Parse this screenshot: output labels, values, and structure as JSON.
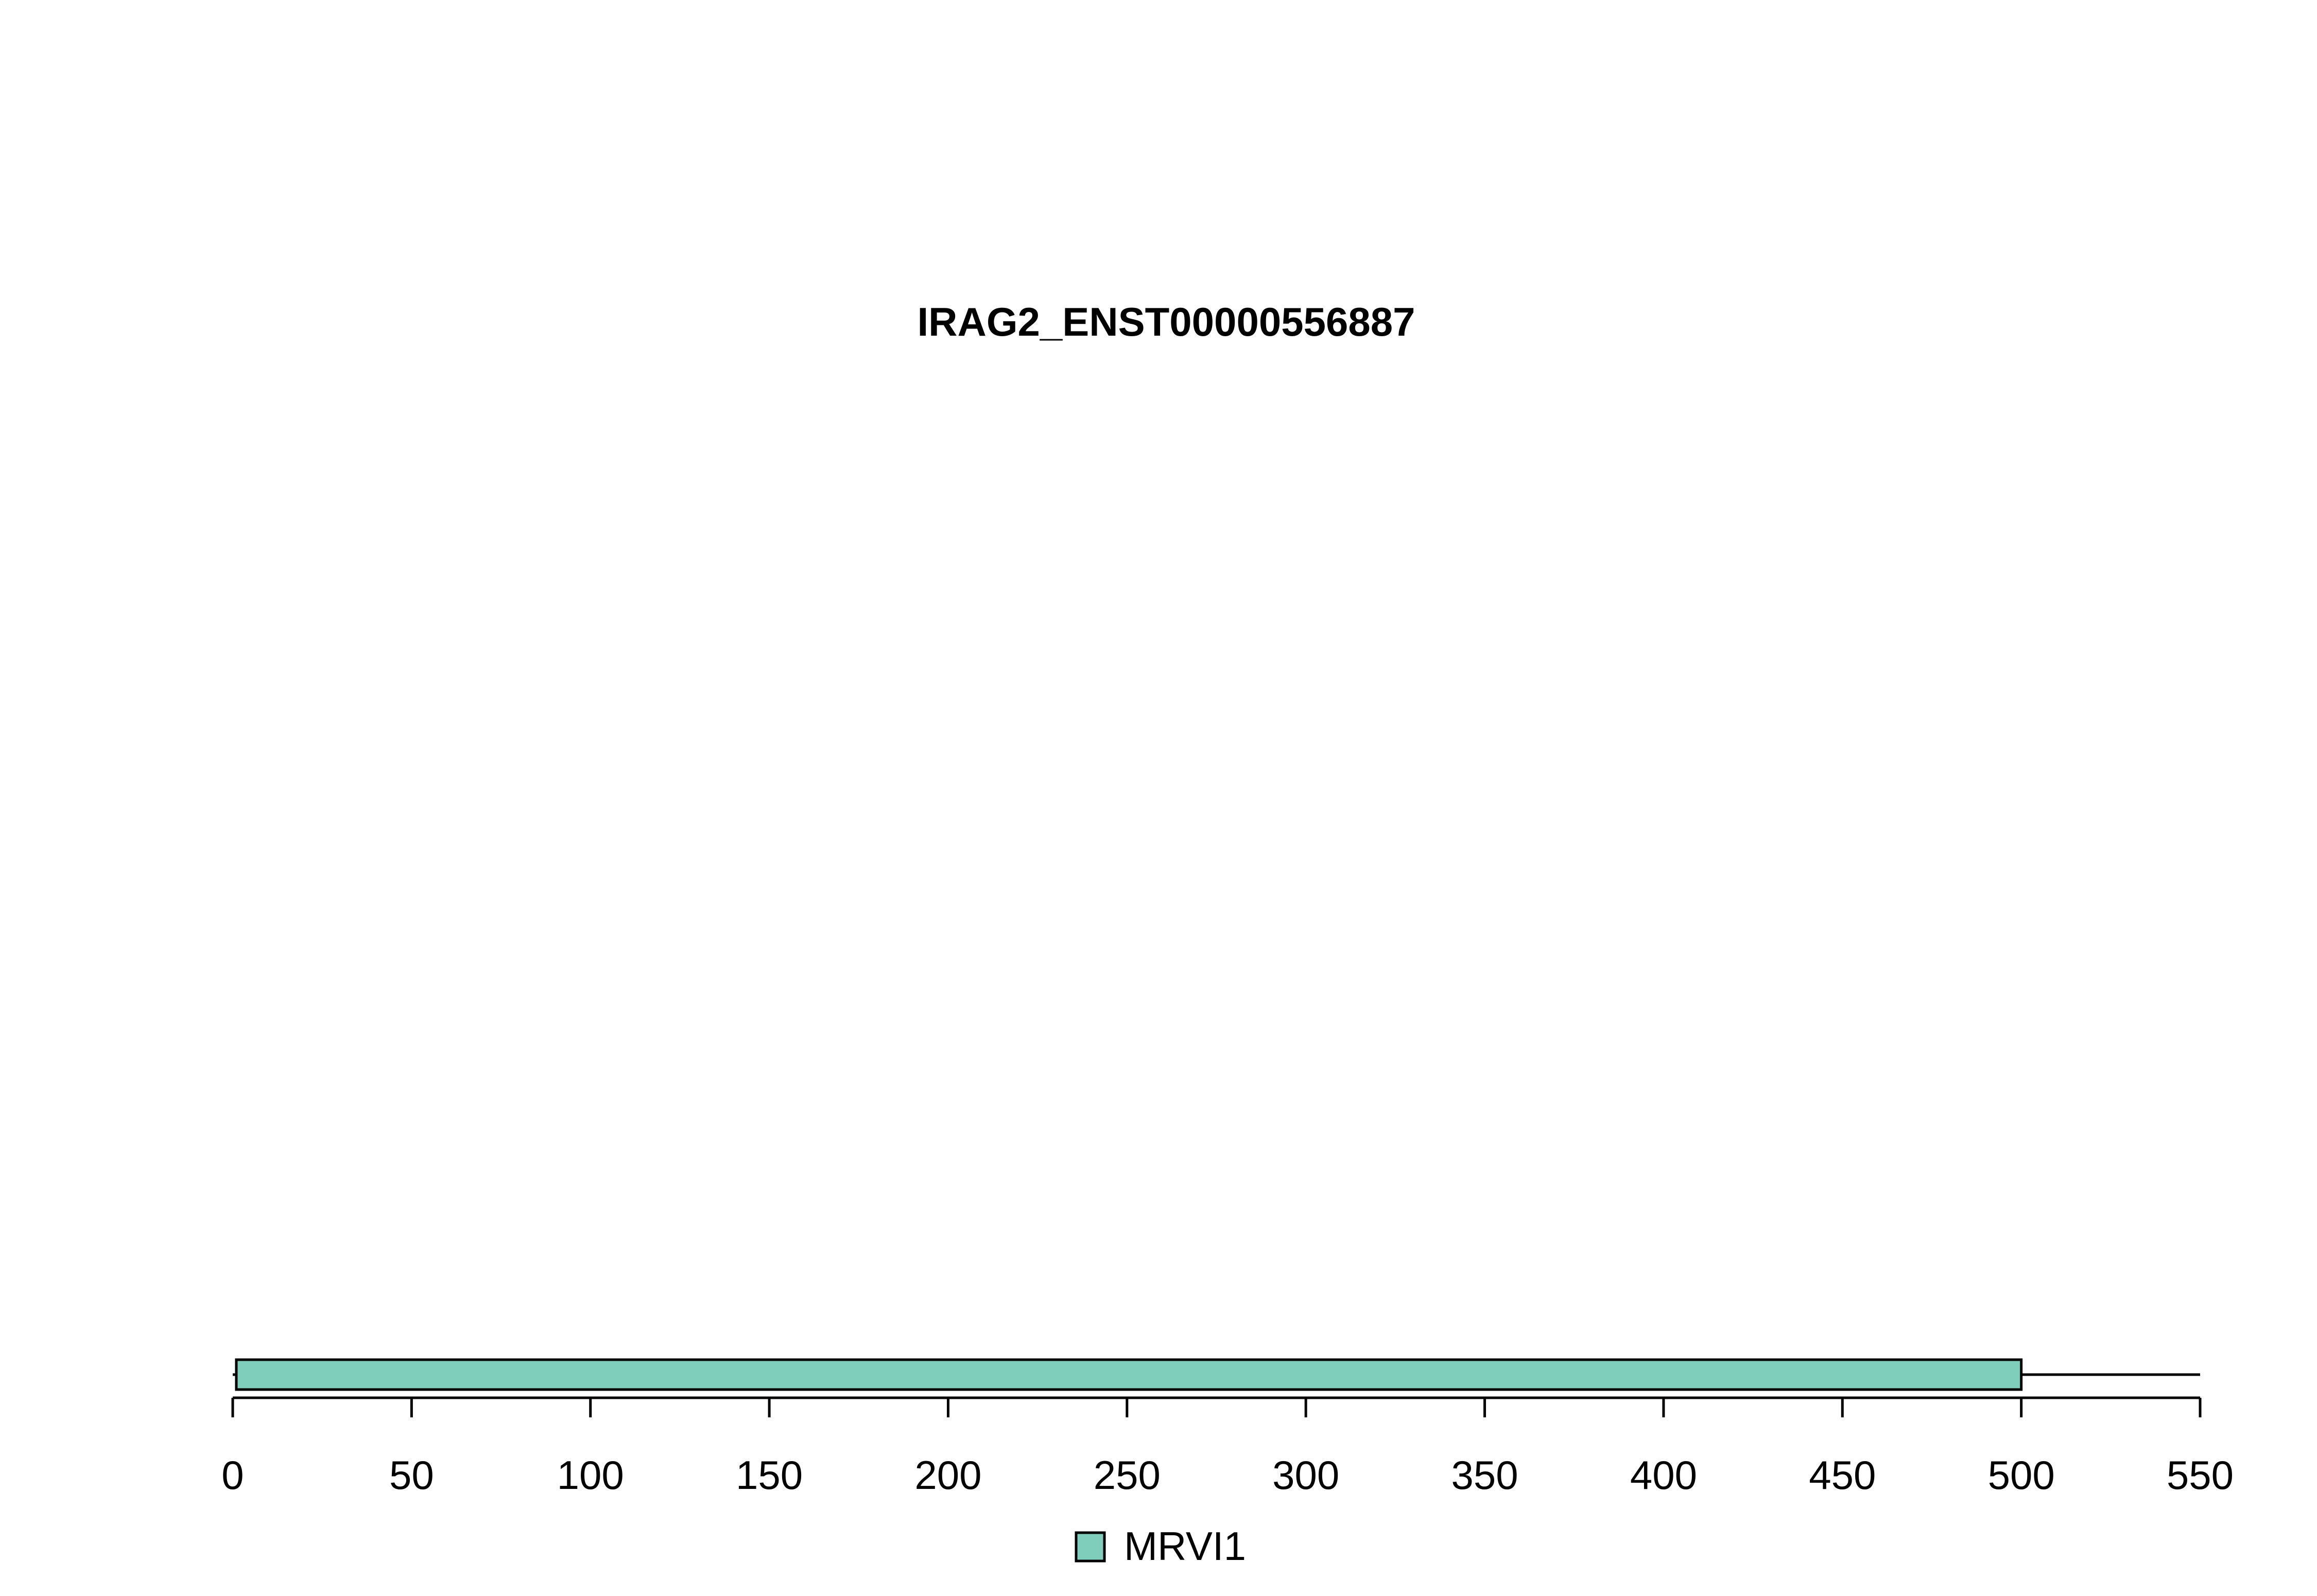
{
  "chart_data": {
    "type": "bar",
    "orientation": "horizontal",
    "title": "IRAG2_ENST00000556887",
    "xlabel": "",
    "ylabel": "",
    "xlim": [
      0,
      550
    ],
    "x_ticks": [
      0,
      50,
      100,
      150,
      200,
      250,
      300,
      350,
      400,
      450,
      500,
      550
    ],
    "backbone": {
      "start": 0,
      "end": 550,
      "color": "#000000"
    },
    "domains": [
      {
        "name": "MRVI1",
        "start": 1,
        "end": 500,
        "color": "#7fcdbb"
      }
    ],
    "legend": {
      "position": "bottom-center",
      "entries": [
        "MRVI1"
      ]
    },
    "grid": false
  }
}
